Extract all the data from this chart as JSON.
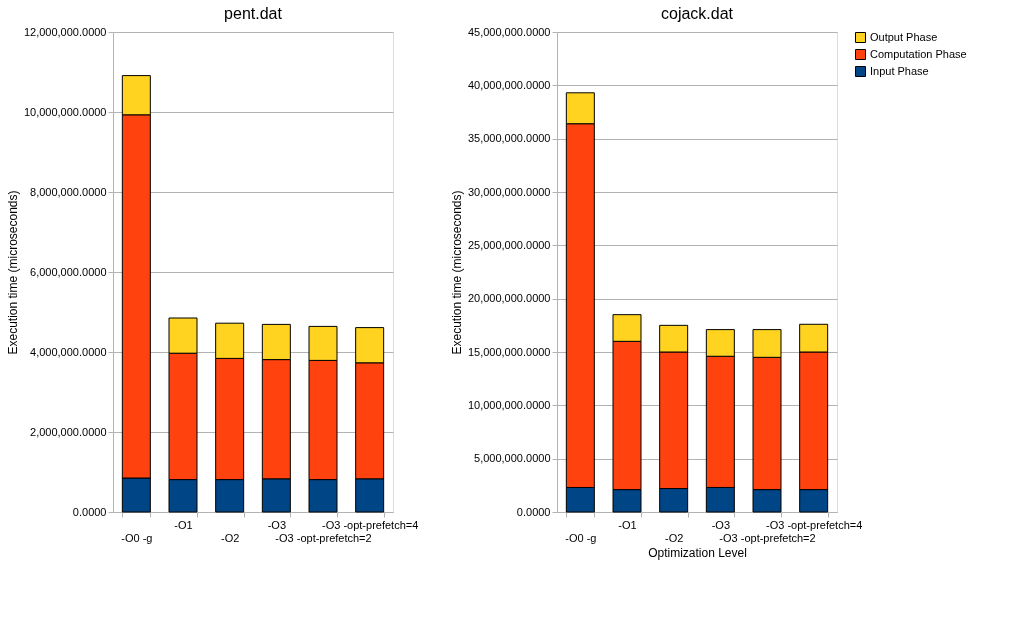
{
  "chart_data": [
    {
      "type": "bar",
      "title": "pent.dat",
      "ylabel": "Execution time (microseconds)",
      "stacked": true,
      "grid": "y",
      "categories": [
        "-O0 -g",
        "-O1",
        "-O2",
        "-O3",
        "-O3 -opt-prefetch=2",
        "-O3 -opt-prefetch=4"
      ],
      "series": [
        {
          "color": "#004586",
          "values": [
            850000,
            810000,
            810000,
            830000,
            810000,
            830000
          ]
        },
        {
          "color": "#ff420e",
          "values": [
            9080000,
            3160000,
            3030000,
            2980000,
            2980000,
            2900000
          ]
        },
        {
          "color": "#ffd320",
          "values": [
            980000,
            880000,
            880000,
            880000,
            850000,
            880000
          ]
        }
      ],
      "ylim": [
        0,
        12000000
      ],
      "yticks": [
        {
          "value": 0,
          "label": "0.0000"
        },
        {
          "value": 2000000,
          "label": "2,000,000.0000"
        },
        {
          "value": 4000000,
          "label": "4,000,000.0000"
        },
        {
          "value": 6000000,
          "label": "6,000,000.0000"
        },
        {
          "value": 8000000,
          "label": "8,000,000.0000"
        },
        {
          "value": 10000000,
          "label": "10,000,000.0000"
        },
        {
          "value": 12000000,
          "label": "12,000,000.0000"
        }
      ]
    },
    {
      "type": "bar",
      "title": "cojack.dat",
      "xlabel": "Optimization Level",
      "ylabel": "Execution time (microseconds)",
      "stacked": true,
      "legend": "right",
      "grid": "y",
      "categories": [
        "-O0 -g",
        "-O1",
        "-O2",
        "-O3",
        "-O3 -opt-prefetch=2",
        "-O3 -opt-prefetch=4"
      ],
      "series": [
        {
          "name": "Input Phase",
          "color": "#004586",
          "values": [
            2300000,
            2100000,
            2200000,
            2300000,
            2100000,
            2100000
          ]
        },
        {
          "name": "Computation Phase",
          "color": "#ff420e",
          "values": [
            34100000,
            13900000,
            12800000,
            12300000,
            12400000,
            12900000
          ]
        },
        {
          "name": "Output Phase",
          "color": "#ffd320",
          "values": [
            2900000,
            2500000,
            2500000,
            2500000,
            2600000,
            2600000
          ]
        }
      ],
      "ylim": [
        0,
        45000000
      ],
      "yticks": [
        {
          "value": 0,
          "label": "0.0000"
        },
        {
          "value": 5000000,
          "label": "5,000,000.0000"
        },
        {
          "value": 10000000,
          "label": "10,000,000.0000"
        },
        {
          "value": 15000000,
          "label": "15,000,000.0000"
        },
        {
          "value": 20000000,
          "label": "20,000,000.0000"
        },
        {
          "value": 25000000,
          "label": "25,000,000.0000"
        },
        {
          "value": 30000000,
          "label": "30,000,000.0000"
        },
        {
          "value": 35000000,
          "label": "35,000,000.0000"
        },
        {
          "value": 40000000,
          "label": "40,000,000.0000"
        },
        {
          "value": 45000000,
          "label": "45,000,000.0000"
        }
      ]
    }
  ]
}
